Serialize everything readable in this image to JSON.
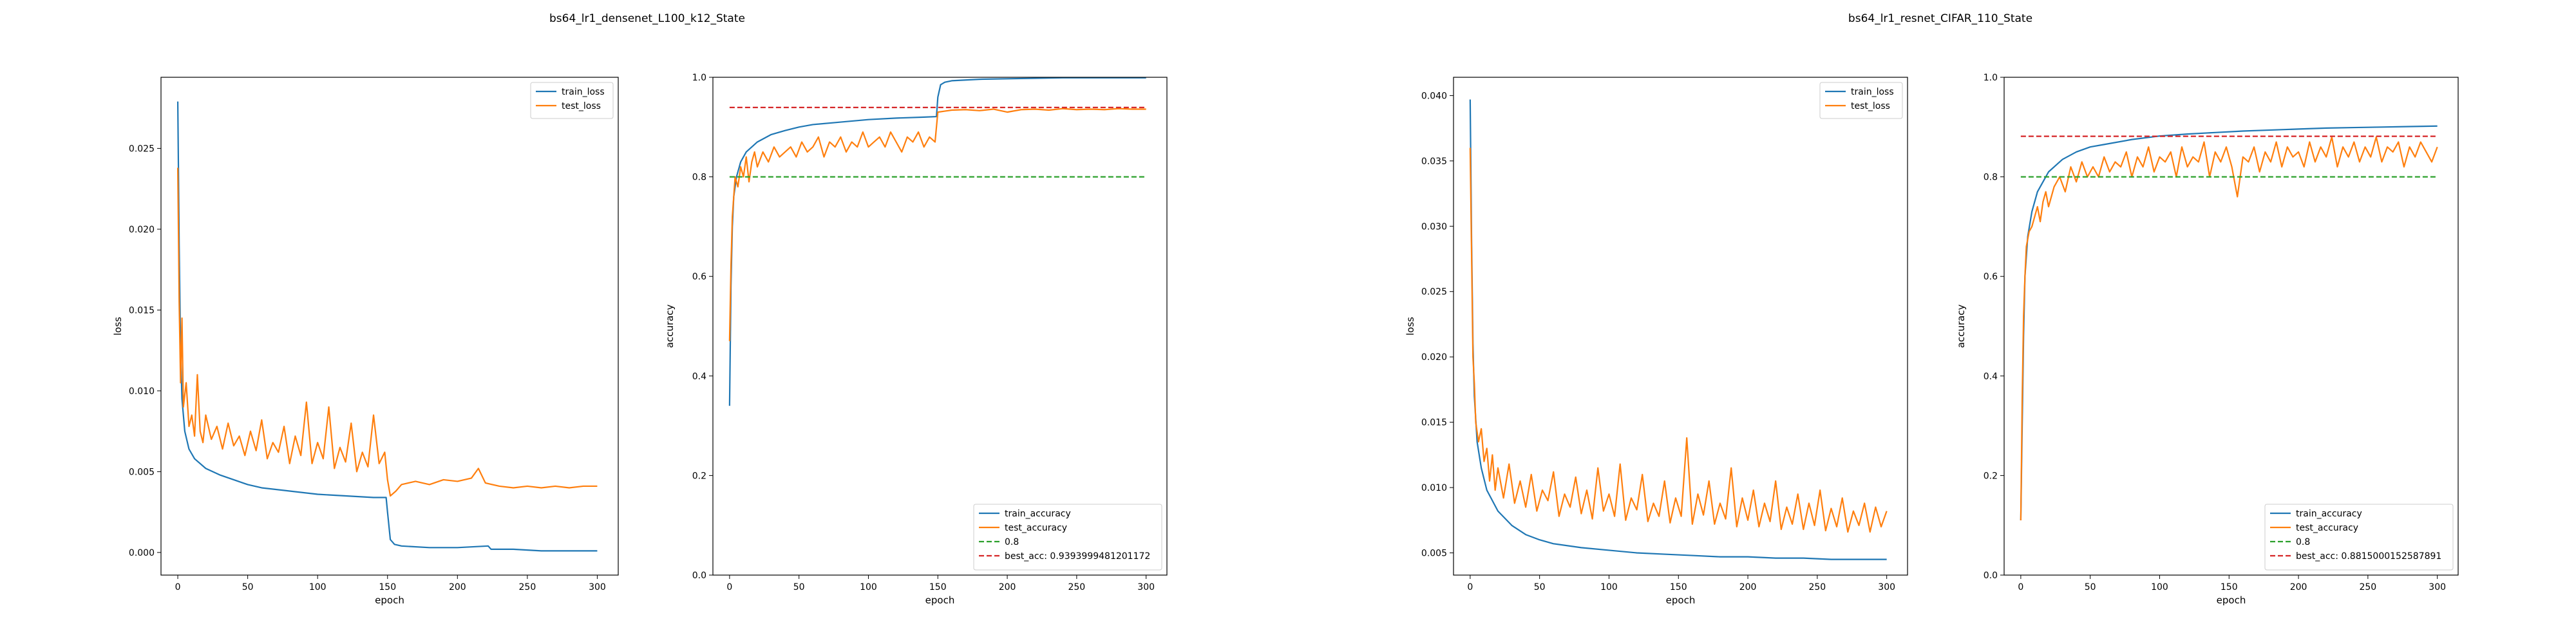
{
  "figure_titles": [
    "bs64_lr1_densenet_L100_k12_State",
    "bs64_lr1_resnet_CIFAR_110_State"
  ],
  "colors": {
    "blue": "#1f77b4",
    "orange": "#ff7f0e",
    "green": "#2ca02c",
    "red": "#d62728"
  },
  "chart_data": [
    {
      "type": "line",
      "figure_title": "bs64_lr1_densenet_L100_k12_State",
      "xlabel": "epoch",
      "ylabel": "loss",
      "xlim": [
        -12,
        315
      ],
      "ylim": [
        -0.0014,
        0.0294
      ],
      "xticks": [
        0,
        50,
        100,
        150,
        200,
        250,
        300
      ],
      "yticks": [
        0.0,
        0.005,
        0.01,
        0.015,
        0.02,
        0.025
      ],
      "ytick_labels": [
        "0.000",
        "0.005",
        "0.010",
        "0.015",
        "0.020",
        "0.025"
      ],
      "legend_loc": "upper-right",
      "grid": false,
      "series": [
        {
          "name": "train_loss",
          "color": "#1f77b4",
          "x": [
            0,
            1,
            2,
            3,
            5,
            8,
            12,
            20,
            30,
            40,
            50,
            60,
            80,
            100,
            120,
            140,
            149,
            150,
            152,
            155,
            160,
            180,
            200,
            222,
            224,
            240,
            260,
            280,
            300
          ],
          "y": [
            0.0279,
            0.019,
            0.0125,
            0.0095,
            0.0075,
            0.0064,
            0.0058,
            0.0052,
            0.0048,
            0.0045,
            0.0042,
            0.004,
            0.0038,
            0.0036,
            0.0035,
            0.0034,
            0.0034,
            0.0025,
            0.0008,
            0.0005,
            0.0004,
            0.0003,
            0.0003,
            0.0004,
            0.0002,
            0.0002,
            0.0001,
            0.0001,
            0.0001
          ]
        },
        {
          "name": "test_loss",
          "color": "#ff7f0e",
          "x": [
            0,
            1,
            2,
            3,
            4,
            6,
            8,
            10,
            12,
            14,
            16,
            18,
            20,
            24,
            28,
            32,
            36,
            40,
            44,
            48,
            52,
            56,
            60,
            64,
            68,
            72,
            76,
            80,
            84,
            88,
            92,
            96,
            100,
            104,
            108,
            112,
            116,
            120,
            124,
            128,
            132,
            136,
            140,
            144,
            148,
            150,
            152,
            156,
            160,
            170,
            180,
            190,
            200,
            210,
            215,
            220,
            230,
            240,
            250,
            260,
            270,
            280,
            290,
            300
          ],
          "y": [
            0.0238,
            0.0155,
            0.0105,
            0.0145,
            0.009,
            0.0105,
            0.0078,
            0.0085,
            0.0072,
            0.011,
            0.0075,
            0.0068,
            0.0085,
            0.007,
            0.0078,
            0.0064,
            0.008,
            0.0066,
            0.0072,
            0.006,
            0.0075,
            0.0063,
            0.0082,
            0.0058,
            0.0068,
            0.0062,
            0.0078,
            0.0055,
            0.0072,
            0.006,
            0.0093,
            0.0055,
            0.0068,
            0.0058,
            0.009,
            0.0052,
            0.0065,
            0.0056,
            0.008,
            0.005,
            0.0062,
            0.0053,
            0.0085,
            0.0055,
            0.0062,
            0.0045,
            0.0035,
            0.0038,
            0.0042,
            0.0044,
            0.0042,
            0.0045,
            0.0044,
            0.0046,
            0.0052,
            0.0043,
            0.0041,
            0.004,
            0.0041,
            0.004,
            0.0041,
            0.004,
            0.0041,
            0.0041
          ]
        }
      ]
    },
    {
      "type": "line",
      "figure_title": "bs64_lr1_densenet_L100_k12_State",
      "xlabel": "epoch",
      "ylabel": "accuracy",
      "xlim": [
        -12,
        315
      ],
      "ylim": [
        0.0,
        1.0
      ],
      "xticks": [
        0,
        50,
        100,
        150,
        200,
        250,
        300
      ],
      "yticks": [
        0.0,
        0.2,
        0.4,
        0.6,
        0.8,
        1.0
      ],
      "ytick_labels": [
        "0.0",
        "0.2",
        "0.4",
        "0.6",
        "0.8",
        "1.0"
      ],
      "legend_loc": "lower-right",
      "grid": false,
      "series": [
        {
          "name": "train_accuracy",
          "color": "#1f77b4",
          "dashed": false,
          "x": [
            0,
            1,
            2,
            3,
            5,
            8,
            12,
            20,
            30,
            40,
            50,
            60,
            80,
            100,
            120,
            140,
            149,
            150,
            152,
            155,
            160,
            180,
            200,
            220,
            240,
            260,
            280,
            300
          ],
          "y": [
            0.34,
            0.58,
            0.7,
            0.76,
            0.8,
            0.83,
            0.85,
            0.87,
            0.885,
            0.893,
            0.9,
            0.905,
            0.91,
            0.915,
            0.918,
            0.92,
            0.921,
            0.96,
            0.985,
            0.99,
            0.993,
            0.996,
            0.997,
            0.998,
            0.999,
            0.999,
            0.999,
            0.999
          ]
        },
        {
          "name": "test_accuracy",
          "color": "#ff7f0e",
          "dashed": false,
          "x": [
            0,
            1,
            2,
            3,
            4,
            6,
            8,
            10,
            12,
            14,
            16,
            18,
            20,
            24,
            28,
            32,
            36,
            40,
            44,
            48,
            52,
            56,
            60,
            64,
            68,
            72,
            76,
            80,
            84,
            88,
            92,
            96,
            100,
            104,
            108,
            112,
            116,
            120,
            124,
            128,
            132,
            136,
            140,
            144,
            148,
            150,
            155,
            160,
            170,
            180,
            190,
            200,
            210,
            220,
            230,
            240,
            250,
            260,
            270,
            280,
            290,
            300
          ],
          "y": [
            0.47,
            0.62,
            0.72,
            0.76,
            0.8,
            0.78,
            0.82,
            0.8,
            0.84,
            0.79,
            0.83,
            0.85,
            0.82,
            0.85,
            0.83,
            0.86,
            0.84,
            0.85,
            0.86,
            0.84,
            0.87,
            0.85,
            0.86,
            0.88,
            0.84,
            0.87,
            0.86,
            0.88,
            0.85,
            0.87,
            0.86,
            0.89,
            0.86,
            0.87,
            0.88,
            0.86,
            0.89,
            0.87,
            0.85,
            0.88,
            0.87,
            0.89,
            0.86,
            0.88,
            0.87,
            0.93,
            0.932,
            0.934,
            0.935,
            0.933,
            0.936,
            0.93,
            0.935,
            0.936,
            0.934,
            0.937,
            0.935,
            0.936,
            0.935,
            0.937,
            0.936,
            0.936
          ]
        },
        {
          "name": "0.8",
          "color": "#2ca02c",
          "dashed": true,
          "x": [
            0,
            300
          ],
          "y": [
            0.8,
            0.8
          ]
        },
        {
          "name": "best_acc: 0.9393999481201172",
          "color": "#d62728",
          "dashed": true,
          "x": [
            0,
            300
          ],
          "y": [
            0.9394,
            0.9394
          ]
        }
      ]
    },
    {
      "type": "line",
      "figure_title": "bs64_lr1_resnet_CIFAR_110_State",
      "xlabel": "epoch",
      "ylabel": "loss",
      "xlim": [
        -12,
        315
      ],
      "ylim": [
        0.0033,
        0.0414
      ],
      "xticks": [
        0,
        50,
        100,
        150,
        200,
        250,
        300
      ],
      "yticks": [
        0.005,
        0.01,
        0.015,
        0.02,
        0.025,
        0.03,
        0.035,
        0.04
      ],
      "ytick_labels": [
        "0.005",
        "0.010",
        "0.015",
        "0.020",
        "0.025",
        "0.030",
        "0.035",
        "0.040"
      ],
      "legend_loc": "upper-right",
      "grid": false,
      "series": [
        {
          "name": "train_loss",
          "color": "#1f77b4",
          "x": [
            0,
            1,
            2,
            3,
            5,
            8,
            12,
            20,
            30,
            40,
            50,
            60,
            80,
            100,
            120,
            140,
            160,
            180,
            200,
            220,
            240,
            260,
            280,
            300
          ],
          "y": [
            0.0397,
            0.029,
            0.021,
            0.017,
            0.0135,
            0.0115,
            0.0098,
            0.0082,
            0.0071,
            0.0064,
            0.006,
            0.0057,
            0.0054,
            0.0052,
            0.005,
            0.0049,
            0.0048,
            0.0047,
            0.0047,
            0.0046,
            0.0046,
            0.0045,
            0.0045,
            0.0045
          ]
        },
        {
          "name": "test_loss",
          "color": "#ff7f0e",
          "x": [
            0,
            1,
            2,
            3,
            4,
            6,
            8,
            10,
            12,
            14,
            16,
            18,
            20,
            24,
            28,
            32,
            36,
            40,
            44,
            48,
            52,
            56,
            60,
            64,
            68,
            72,
            76,
            80,
            84,
            88,
            92,
            96,
            100,
            104,
            108,
            112,
            116,
            120,
            124,
            128,
            132,
            136,
            140,
            144,
            148,
            152,
            156,
            160,
            164,
            168,
            172,
            176,
            180,
            184,
            188,
            192,
            196,
            200,
            204,
            208,
            212,
            216,
            220,
            224,
            228,
            232,
            236,
            240,
            244,
            248,
            252,
            256,
            260,
            264,
            268,
            272,
            276,
            280,
            284,
            288,
            292,
            296,
            300
          ],
          "y": [
            0.036,
            0.028,
            0.02,
            0.018,
            0.015,
            0.0135,
            0.0145,
            0.012,
            0.013,
            0.0105,
            0.0125,
            0.0098,
            0.0115,
            0.0092,
            0.0118,
            0.0088,
            0.0105,
            0.0085,
            0.011,
            0.0082,
            0.0098,
            0.009,
            0.0112,
            0.0078,
            0.0095,
            0.0085,
            0.0108,
            0.008,
            0.0098,
            0.0076,
            0.0115,
            0.0082,
            0.0095,
            0.0078,
            0.0118,
            0.0075,
            0.0092,
            0.0083,
            0.011,
            0.0074,
            0.0088,
            0.0078,
            0.0105,
            0.0073,
            0.0092,
            0.0078,
            0.0138,
            0.0072,
            0.0095,
            0.0079,
            0.0105,
            0.0072,
            0.0088,
            0.0076,
            0.0115,
            0.007,
            0.0092,
            0.0075,
            0.0098,
            0.007,
            0.0088,
            0.0074,
            0.0105,
            0.0068,
            0.0085,
            0.0072,
            0.0095,
            0.0068,
            0.0088,
            0.0071,
            0.0098,
            0.0067,
            0.0084,
            0.007,
            0.0092,
            0.0066,
            0.0082,
            0.0071,
            0.0088,
            0.0066,
            0.0085,
            0.007,
            0.0082
          ]
        }
      ]
    },
    {
      "type": "line",
      "figure_title": "bs64_lr1_resnet_CIFAR_110_State",
      "xlabel": "epoch",
      "ylabel": "accuracy",
      "xlim": [
        -12,
        315
      ],
      "ylim": [
        0.0,
        1.0
      ],
      "xticks": [
        0,
        50,
        100,
        150,
        200,
        250,
        300
      ],
      "yticks": [
        0.0,
        0.2,
        0.4,
        0.6,
        0.8,
        1.0
      ],
      "ytick_labels": [
        "0.0",
        "0.2",
        "0.4",
        "0.6",
        "0.8",
        "1.0"
      ],
      "legend_loc": "lower-right",
      "grid": false,
      "series": [
        {
          "name": "train_accuracy",
          "color": "#1f77b4",
          "dashed": false,
          "x": [
            0,
            1,
            2,
            3,
            5,
            8,
            12,
            20,
            30,
            40,
            50,
            60,
            80,
            100,
            120,
            140,
            160,
            180,
            200,
            220,
            240,
            260,
            280,
            300
          ],
          "y": [
            0.11,
            0.3,
            0.48,
            0.6,
            0.68,
            0.73,
            0.77,
            0.81,
            0.835,
            0.85,
            0.86,
            0.865,
            0.875,
            0.882,
            0.886,
            0.889,
            0.892,
            0.894,
            0.896,
            0.898,
            0.899,
            0.9,
            0.901,
            0.902
          ]
        },
        {
          "name": "test_accuracy",
          "color": "#ff7f0e",
          "dashed": false,
          "x": [
            0,
            1,
            2,
            3,
            4,
            6,
            8,
            10,
            12,
            14,
            16,
            18,
            20,
            24,
            28,
            32,
            36,
            40,
            44,
            48,
            52,
            56,
            60,
            64,
            68,
            72,
            76,
            80,
            84,
            88,
            92,
            96,
            100,
            104,
            108,
            112,
            116,
            120,
            124,
            128,
            132,
            136,
            140,
            144,
            148,
            152,
            156,
            160,
            164,
            168,
            172,
            176,
            180,
            184,
            188,
            192,
            196,
            200,
            204,
            208,
            212,
            216,
            220,
            224,
            228,
            232,
            236,
            240,
            244,
            248,
            252,
            256,
            260,
            264,
            268,
            272,
            276,
            280,
            284,
            288,
            292,
            296,
            300
          ],
          "y": [
            0.11,
            0.35,
            0.52,
            0.6,
            0.66,
            0.69,
            0.7,
            0.72,
            0.74,
            0.71,
            0.75,
            0.77,
            0.74,
            0.78,
            0.8,
            0.77,
            0.82,
            0.79,
            0.83,
            0.8,
            0.82,
            0.8,
            0.84,
            0.81,
            0.83,
            0.82,
            0.85,
            0.8,
            0.84,
            0.82,
            0.86,
            0.81,
            0.84,
            0.83,
            0.85,
            0.8,
            0.86,
            0.82,
            0.84,
            0.83,
            0.87,
            0.8,
            0.85,
            0.83,
            0.86,
            0.82,
            0.76,
            0.84,
            0.83,
            0.86,
            0.81,
            0.85,
            0.83,
            0.87,
            0.82,
            0.86,
            0.84,
            0.85,
            0.82,
            0.87,
            0.83,
            0.86,
            0.84,
            0.88,
            0.82,
            0.86,
            0.84,
            0.87,
            0.83,
            0.86,
            0.84,
            0.88,
            0.83,
            0.86,
            0.85,
            0.87,
            0.82,
            0.86,
            0.84,
            0.87,
            0.85,
            0.83,
            0.86
          ]
        },
        {
          "name": "0.8",
          "color": "#2ca02c",
          "dashed": true,
          "x": [
            0,
            300
          ],
          "y": [
            0.8,
            0.8
          ]
        },
        {
          "name": "best_acc: 0.8815000152587891",
          "color": "#d62728",
          "dashed": true,
          "x": [
            0,
            300
          ],
          "y": [
            0.8815,
            0.8815
          ]
        }
      ]
    }
  ]
}
